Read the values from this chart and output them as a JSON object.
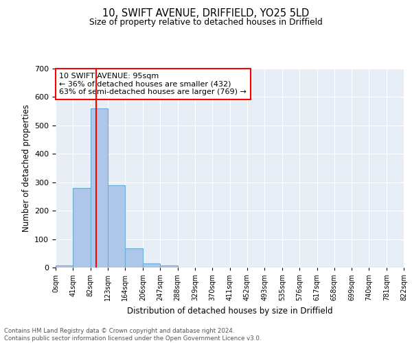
{
  "title1": "10, SWIFT AVENUE, DRIFFIELD, YO25 5LD",
  "title2": "Size of property relative to detached houses in Driffield",
  "xlabel": "Distribution of detached houses by size in Driffield",
  "ylabel": "Number of detached properties",
  "bin_edges": [
    0,
    41,
    82,
    123,
    164,
    206,
    247,
    288,
    329,
    370,
    411,
    452,
    493,
    535,
    576,
    617,
    658,
    699,
    740,
    781,
    822
  ],
  "bin_labels": [
    "0sqm",
    "41sqm",
    "82sqm",
    "123sqm",
    "164sqm",
    "206sqm",
    "247sqm",
    "288sqm",
    "329sqm",
    "370sqm",
    "411sqm",
    "452sqm",
    "493sqm",
    "535sqm",
    "576sqm",
    "617sqm",
    "658sqm",
    "699sqm",
    "740sqm",
    "781sqm",
    "822sqm"
  ],
  "counts": [
    8,
    280,
    560,
    290,
    68,
    14,
    8,
    0,
    0,
    0,
    0,
    0,
    0,
    0,
    0,
    0,
    0,
    0,
    0,
    0
  ],
  "bar_color": "#aec6e8",
  "bar_edge_color": "#6aaed6",
  "vline_x": 95,
  "vline_color": "red",
  "annotation_text": "10 SWIFT AVENUE: 95sqm\n← 36% of detached houses are smaller (432)\n63% of semi-detached houses are larger (769) →",
  "annotation_box_color": "white",
  "annotation_box_edge": "red",
  "ylim": [
    0,
    700
  ],
  "yticks": [
    0,
    100,
    200,
    300,
    400,
    500,
    600,
    700
  ],
  "background_color": "#e8eef6",
  "grid_color": "white",
  "footer1": "Contains HM Land Registry data © Crown copyright and database right 2024.",
  "footer2": "Contains public sector information licensed under the Open Government Licence v3.0."
}
